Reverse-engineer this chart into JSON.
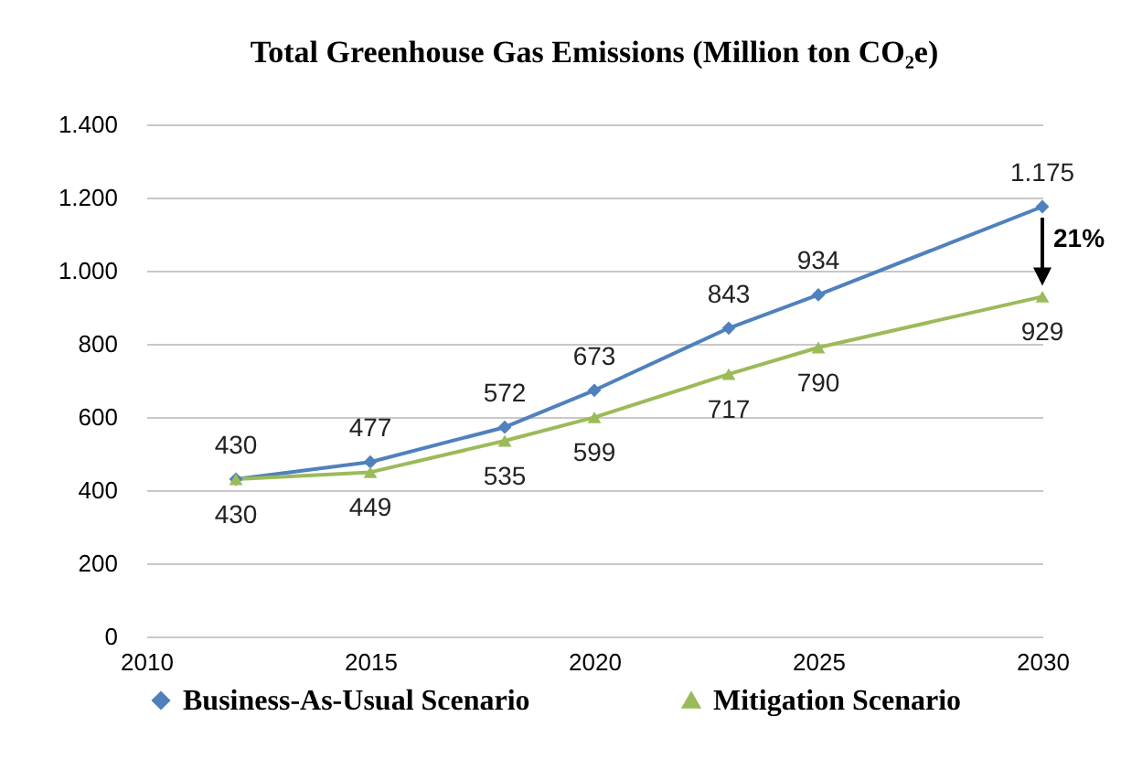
{
  "chart_data": {
    "type": "line",
    "title": "Total Greenhouse Gas Emissions (Million ton CO₂e)",
    "series": [
      {
        "name": "Business-As-Usual Scenario",
        "color": "#4f81bd",
        "marker": "diamond",
        "x": [
          2012,
          2015,
          2018,
          2020,
          2023,
          2025,
          2030
        ],
        "values": [
          430,
          477,
          572,
          673,
          843,
          934,
          1175
        ],
        "value_labels": [
          "430",
          "477",
          "572",
          "673",
          "843",
          "934",
          "1.175"
        ]
      },
      {
        "name": "Mitigation Scenario",
        "color": "#9bbb59",
        "marker": "triangle",
        "x": [
          2012,
          2015,
          2018,
          2020,
          2023,
          2025,
          2030
        ],
        "values": [
          430,
          449,
          535,
          599,
          717,
          790,
          929
        ],
        "value_labels": [
          "430",
          "449",
          "535",
          "599",
          "717",
          "790",
          "929"
        ]
      }
    ],
    "xlim": [
      2010,
      2030
    ],
    "xticks": [
      2010,
      2015,
      2020,
      2025,
      2030
    ],
    "ylim": [
      0,
      1400
    ],
    "yticks": [
      0,
      200,
      400,
      600,
      800,
      {
        "value": 1000,
        "label": "1.000"
      },
      {
        "value": 1200,
        "label": "1.200"
      },
      {
        "value": 1400,
        "label": "1.400"
      }
    ],
    "grid": "y",
    "legend": "bottom",
    "annotations": [
      "21%"
    ]
  }
}
